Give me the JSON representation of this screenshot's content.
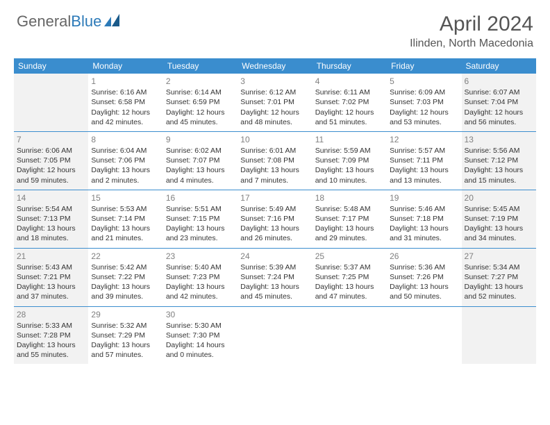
{
  "brand": {
    "part1": "General",
    "part2": "Blue"
  },
  "title": "April 2024",
  "location": "Ilinden, North Macedonia",
  "colors": {
    "header_bg": "#3a8dce",
    "header_text": "#ffffff",
    "weekend_bg": "#f2f2f2",
    "border": "#3a8dce",
    "text": "#333333",
    "daynum": "#808080",
    "title": "#555555"
  },
  "dayNames": [
    "Sunday",
    "Monday",
    "Tuesday",
    "Wednesday",
    "Thursday",
    "Friday",
    "Saturday"
  ],
  "weeks": [
    [
      {
        "num": "",
        "lines": []
      },
      {
        "num": "1",
        "lines": [
          "Sunrise: 6:16 AM",
          "Sunset: 6:58 PM",
          "Daylight: 12 hours",
          "and 42 minutes."
        ]
      },
      {
        "num": "2",
        "lines": [
          "Sunrise: 6:14 AM",
          "Sunset: 6:59 PM",
          "Daylight: 12 hours",
          "and 45 minutes."
        ]
      },
      {
        "num": "3",
        "lines": [
          "Sunrise: 6:12 AM",
          "Sunset: 7:01 PM",
          "Daylight: 12 hours",
          "and 48 minutes."
        ]
      },
      {
        "num": "4",
        "lines": [
          "Sunrise: 6:11 AM",
          "Sunset: 7:02 PM",
          "Daylight: 12 hours",
          "and 51 minutes."
        ]
      },
      {
        "num": "5",
        "lines": [
          "Sunrise: 6:09 AM",
          "Sunset: 7:03 PM",
          "Daylight: 12 hours",
          "and 53 minutes."
        ]
      },
      {
        "num": "6",
        "lines": [
          "Sunrise: 6:07 AM",
          "Sunset: 7:04 PM",
          "Daylight: 12 hours",
          "and 56 minutes."
        ]
      }
    ],
    [
      {
        "num": "7",
        "lines": [
          "Sunrise: 6:06 AM",
          "Sunset: 7:05 PM",
          "Daylight: 12 hours",
          "and 59 minutes."
        ]
      },
      {
        "num": "8",
        "lines": [
          "Sunrise: 6:04 AM",
          "Sunset: 7:06 PM",
          "Daylight: 13 hours",
          "and 2 minutes."
        ]
      },
      {
        "num": "9",
        "lines": [
          "Sunrise: 6:02 AM",
          "Sunset: 7:07 PM",
          "Daylight: 13 hours",
          "and 4 minutes."
        ]
      },
      {
        "num": "10",
        "lines": [
          "Sunrise: 6:01 AM",
          "Sunset: 7:08 PM",
          "Daylight: 13 hours",
          "and 7 minutes."
        ]
      },
      {
        "num": "11",
        "lines": [
          "Sunrise: 5:59 AM",
          "Sunset: 7:09 PM",
          "Daylight: 13 hours",
          "and 10 minutes."
        ]
      },
      {
        "num": "12",
        "lines": [
          "Sunrise: 5:57 AM",
          "Sunset: 7:11 PM",
          "Daylight: 13 hours",
          "and 13 minutes."
        ]
      },
      {
        "num": "13",
        "lines": [
          "Sunrise: 5:56 AM",
          "Sunset: 7:12 PM",
          "Daylight: 13 hours",
          "and 15 minutes."
        ]
      }
    ],
    [
      {
        "num": "14",
        "lines": [
          "Sunrise: 5:54 AM",
          "Sunset: 7:13 PM",
          "Daylight: 13 hours",
          "and 18 minutes."
        ]
      },
      {
        "num": "15",
        "lines": [
          "Sunrise: 5:53 AM",
          "Sunset: 7:14 PM",
          "Daylight: 13 hours",
          "and 21 minutes."
        ]
      },
      {
        "num": "16",
        "lines": [
          "Sunrise: 5:51 AM",
          "Sunset: 7:15 PM",
          "Daylight: 13 hours",
          "and 23 minutes."
        ]
      },
      {
        "num": "17",
        "lines": [
          "Sunrise: 5:49 AM",
          "Sunset: 7:16 PM",
          "Daylight: 13 hours",
          "and 26 minutes."
        ]
      },
      {
        "num": "18",
        "lines": [
          "Sunrise: 5:48 AM",
          "Sunset: 7:17 PM",
          "Daylight: 13 hours",
          "and 29 minutes."
        ]
      },
      {
        "num": "19",
        "lines": [
          "Sunrise: 5:46 AM",
          "Sunset: 7:18 PM",
          "Daylight: 13 hours",
          "and 31 minutes."
        ]
      },
      {
        "num": "20",
        "lines": [
          "Sunrise: 5:45 AM",
          "Sunset: 7:19 PM",
          "Daylight: 13 hours",
          "and 34 minutes."
        ]
      }
    ],
    [
      {
        "num": "21",
        "lines": [
          "Sunrise: 5:43 AM",
          "Sunset: 7:21 PM",
          "Daylight: 13 hours",
          "and 37 minutes."
        ]
      },
      {
        "num": "22",
        "lines": [
          "Sunrise: 5:42 AM",
          "Sunset: 7:22 PM",
          "Daylight: 13 hours",
          "and 39 minutes."
        ]
      },
      {
        "num": "23",
        "lines": [
          "Sunrise: 5:40 AM",
          "Sunset: 7:23 PM",
          "Daylight: 13 hours",
          "and 42 minutes."
        ]
      },
      {
        "num": "24",
        "lines": [
          "Sunrise: 5:39 AM",
          "Sunset: 7:24 PM",
          "Daylight: 13 hours",
          "and 45 minutes."
        ]
      },
      {
        "num": "25",
        "lines": [
          "Sunrise: 5:37 AM",
          "Sunset: 7:25 PM",
          "Daylight: 13 hours",
          "and 47 minutes."
        ]
      },
      {
        "num": "26",
        "lines": [
          "Sunrise: 5:36 AM",
          "Sunset: 7:26 PM",
          "Daylight: 13 hours",
          "and 50 minutes."
        ]
      },
      {
        "num": "27",
        "lines": [
          "Sunrise: 5:34 AM",
          "Sunset: 7:27 PM",
          "Daylight: 13 hours",
          "and 52 minutes."
        ]
      }
    ],
    [
      {
        "num": "28",
        "lines": [
          "Sunrise: 5:33 AM",
          "Sunset: 7:28 PM",
          "Daylight: 13 hours",
          "and 55 minutes."
        ]
      },
      {
        "num": "29",
        "lines": [
          "Sunrise: 5:32 AM",
          "Sunset: 7:29 PM",
          "Daylight: 13 hours",
          "and 57 minutes."
        ]
      },
      {
        "num": "30",
        "lines": [
          "Sunrise: 5:30 AM",
          "Sunset: 7:30 PM",
          "Daylight: 14 hours",
          "and 0 minutes."
        ]
      },
      {
        "num": "",
        "lines": []
      },
      {
        "num": "",
        "lines": []
      },
      {
        "num": "",
        "lines": []
      },
      {
        "num": "",
        "lines": []
      }
    ]
  ]
}
